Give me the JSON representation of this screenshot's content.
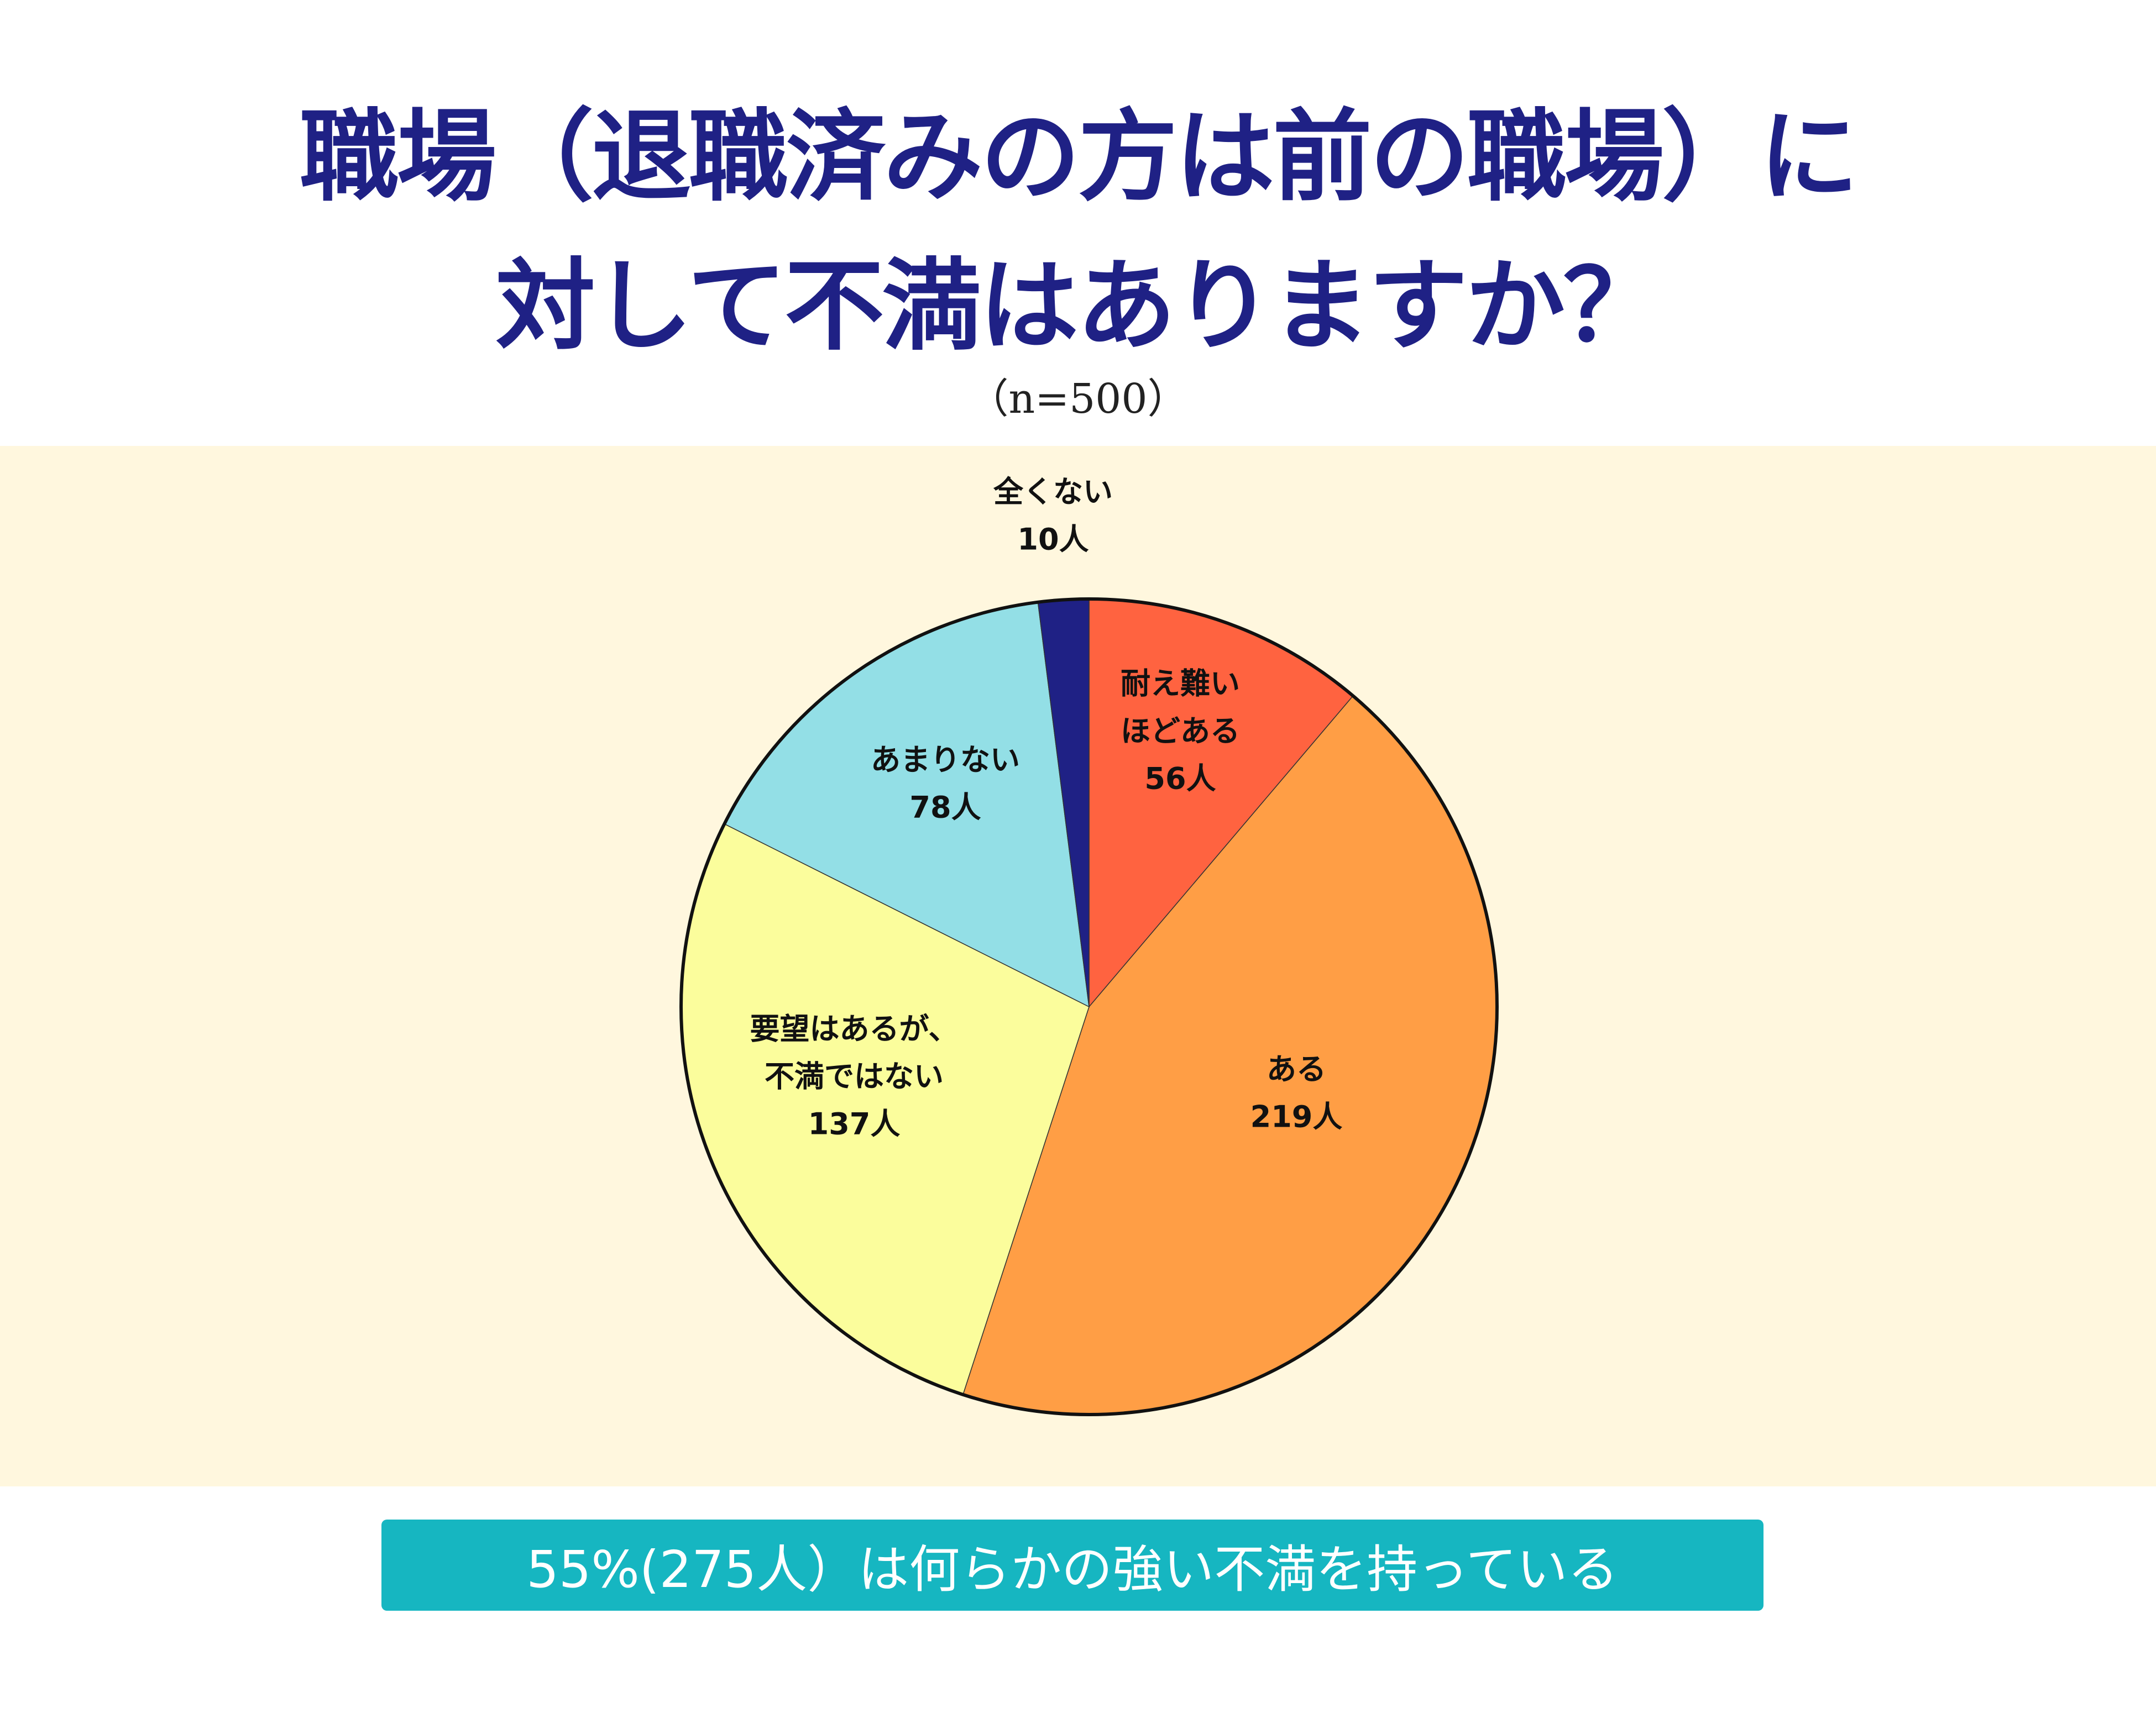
{
  "title": {
    "line1": "職場（退職済みの方は前の職場）に",
    "line2": "対して不満はありますか？"
  },
  "subtitle": "（n=500）",
  "summary": "55%(275人）は何らかの強い不満を持っている",
  "colors": {
    "title": "#1f2185",
    "panel_background": "#fff7de",
    "summary_background": "#16b6c1"
  },
  "chart_data": {
    "type": "pie",
    "total": 500,
    "start": "12 o'clock",
    "direction": "clockwise",
    "slices": [
      {
        "label": [
          "耐え難い",
          "ほどある"
        ],
        "value": 56,
        "value_label": "56人",
        "color": "#ff6340"
      },
      {
        "label": [
          "ある"
        ],
        "value": 219,
        "value_label": "219人",
        "color": "#ff9e45"
      },
      {
        "label": [
          "要望はあるが、",
          "不満ではない"
        ],
        "value": 137,
        "value_label": "137人",
        "color": "#fbfd9c"
      },
      {
        "label": [
          "あまりない"
        ],
        "value": 78,
        "value_label": "78人",
        "color": "#93dfe6"
      },
      {
        "label": [
          "全くない"
        ],
        "value": 10,
        "value_label": "10人",
        "color": "#1f2185"
      }
    ]
  }
}
